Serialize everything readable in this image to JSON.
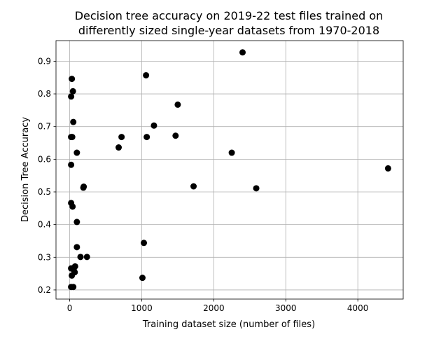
{
  "chart_data": {
    "type": "scatter",
    "title_lines": [
      "Decision tree accuracy on 2019-22 test files trained on",
      "differently sized single-year datasets from 1970-2018"
    ],
    "xlabel": "Training dataset size (number of files)",
    "ylabel": "Decision Tree Accuracy",
    "xlim": [
      -190,
      4630
    ],
    "ylim": [
      0.172,
      0.963
    ],
    "xticks": [
      0,
      1000,
      2000,
      3000,
      4000
    ],
    "yticks": [
      0.2,
      0.3,
      0.4,
      0.5,
      0.6,
      0.7,
      0.8,
      0.9
    ],
    "grid": true,
    "marker_color": "#000000",
    "points": [
      {
        "x": 2400,
        "y": 0.927
      },
      {
        "x": 1060,
        "y": 0.857
      },
      {
        "x": 30,
        "y": 0.846
      },
      {
        "x": 45,
        "y": 0.808
      },
      {
        "x": 20,
        "y": 0.792
      },
      {
        "x": 1500,
        "y": 0.767
      },
      {
        "x": 50,
        "y": 0.714
      },
      {
        "x": 1170,
        "y": 0.703
      },
      {
        "x": 20,
        "y": 0.668
      },
      {
        "x": 35,
        "y": 0.668
      },
      {
        "x": 720,
        "y": 0.668
      },
      {
        "x": 1070,
        "y": 0.668
      },
      {
        "x": 1470,
        "y": 0.672
      },
      {
        "x": 680,
        "y": 0.636
      },
      {
        "x": 100,
        "y": 0.62
      },
      {
        "x": 2250,
        "y": 0.62
      },
      {
        "x": 20,
        "y": 0.583
      },
      {
        "x": 4420,
        "y": 0.572
      },
      {
        "x": 195,
        "y": 0.516
      },
      {
        "x": 190,
        "y": 0.513
      },
      {
        "x": 1720,
        "y": 0.517
      },
      {
        "x": 2590,
        "y": 0.511
      },
      {
        "x": 20,
        "y": 0.466
      },
      {
        "x": 40,
        "y": 0.455
      },
      {
        "x": 100,
        "y": 0.408
      },
      {
        "x": 1030,
        "y": 0.344
      },
      {
        "x": 100,
        "y": 0.331
      },
      {
        "x": 150,
        "y": 0.301
      },
      {
        "x": 240,
        "y": 0.301
      },
      {
        "x": 20,
        "y": 0.266
      },
      {
        "x": 75,
        "y": 0.272
      },
      {
        "x": 55,
        "y": 0.262
      },
      {
        "x": 70,
        "y": 0.254
      },
      {
        "x": 30,
        "y": 0.244
      },
      {
        "x": 1010,
        "y": 0.237
      },
      {
        "x": 20,
        "y": 0.209
      },
      {
        "x": 50,
        "y": 0.209
      }
    ]
  }
}
